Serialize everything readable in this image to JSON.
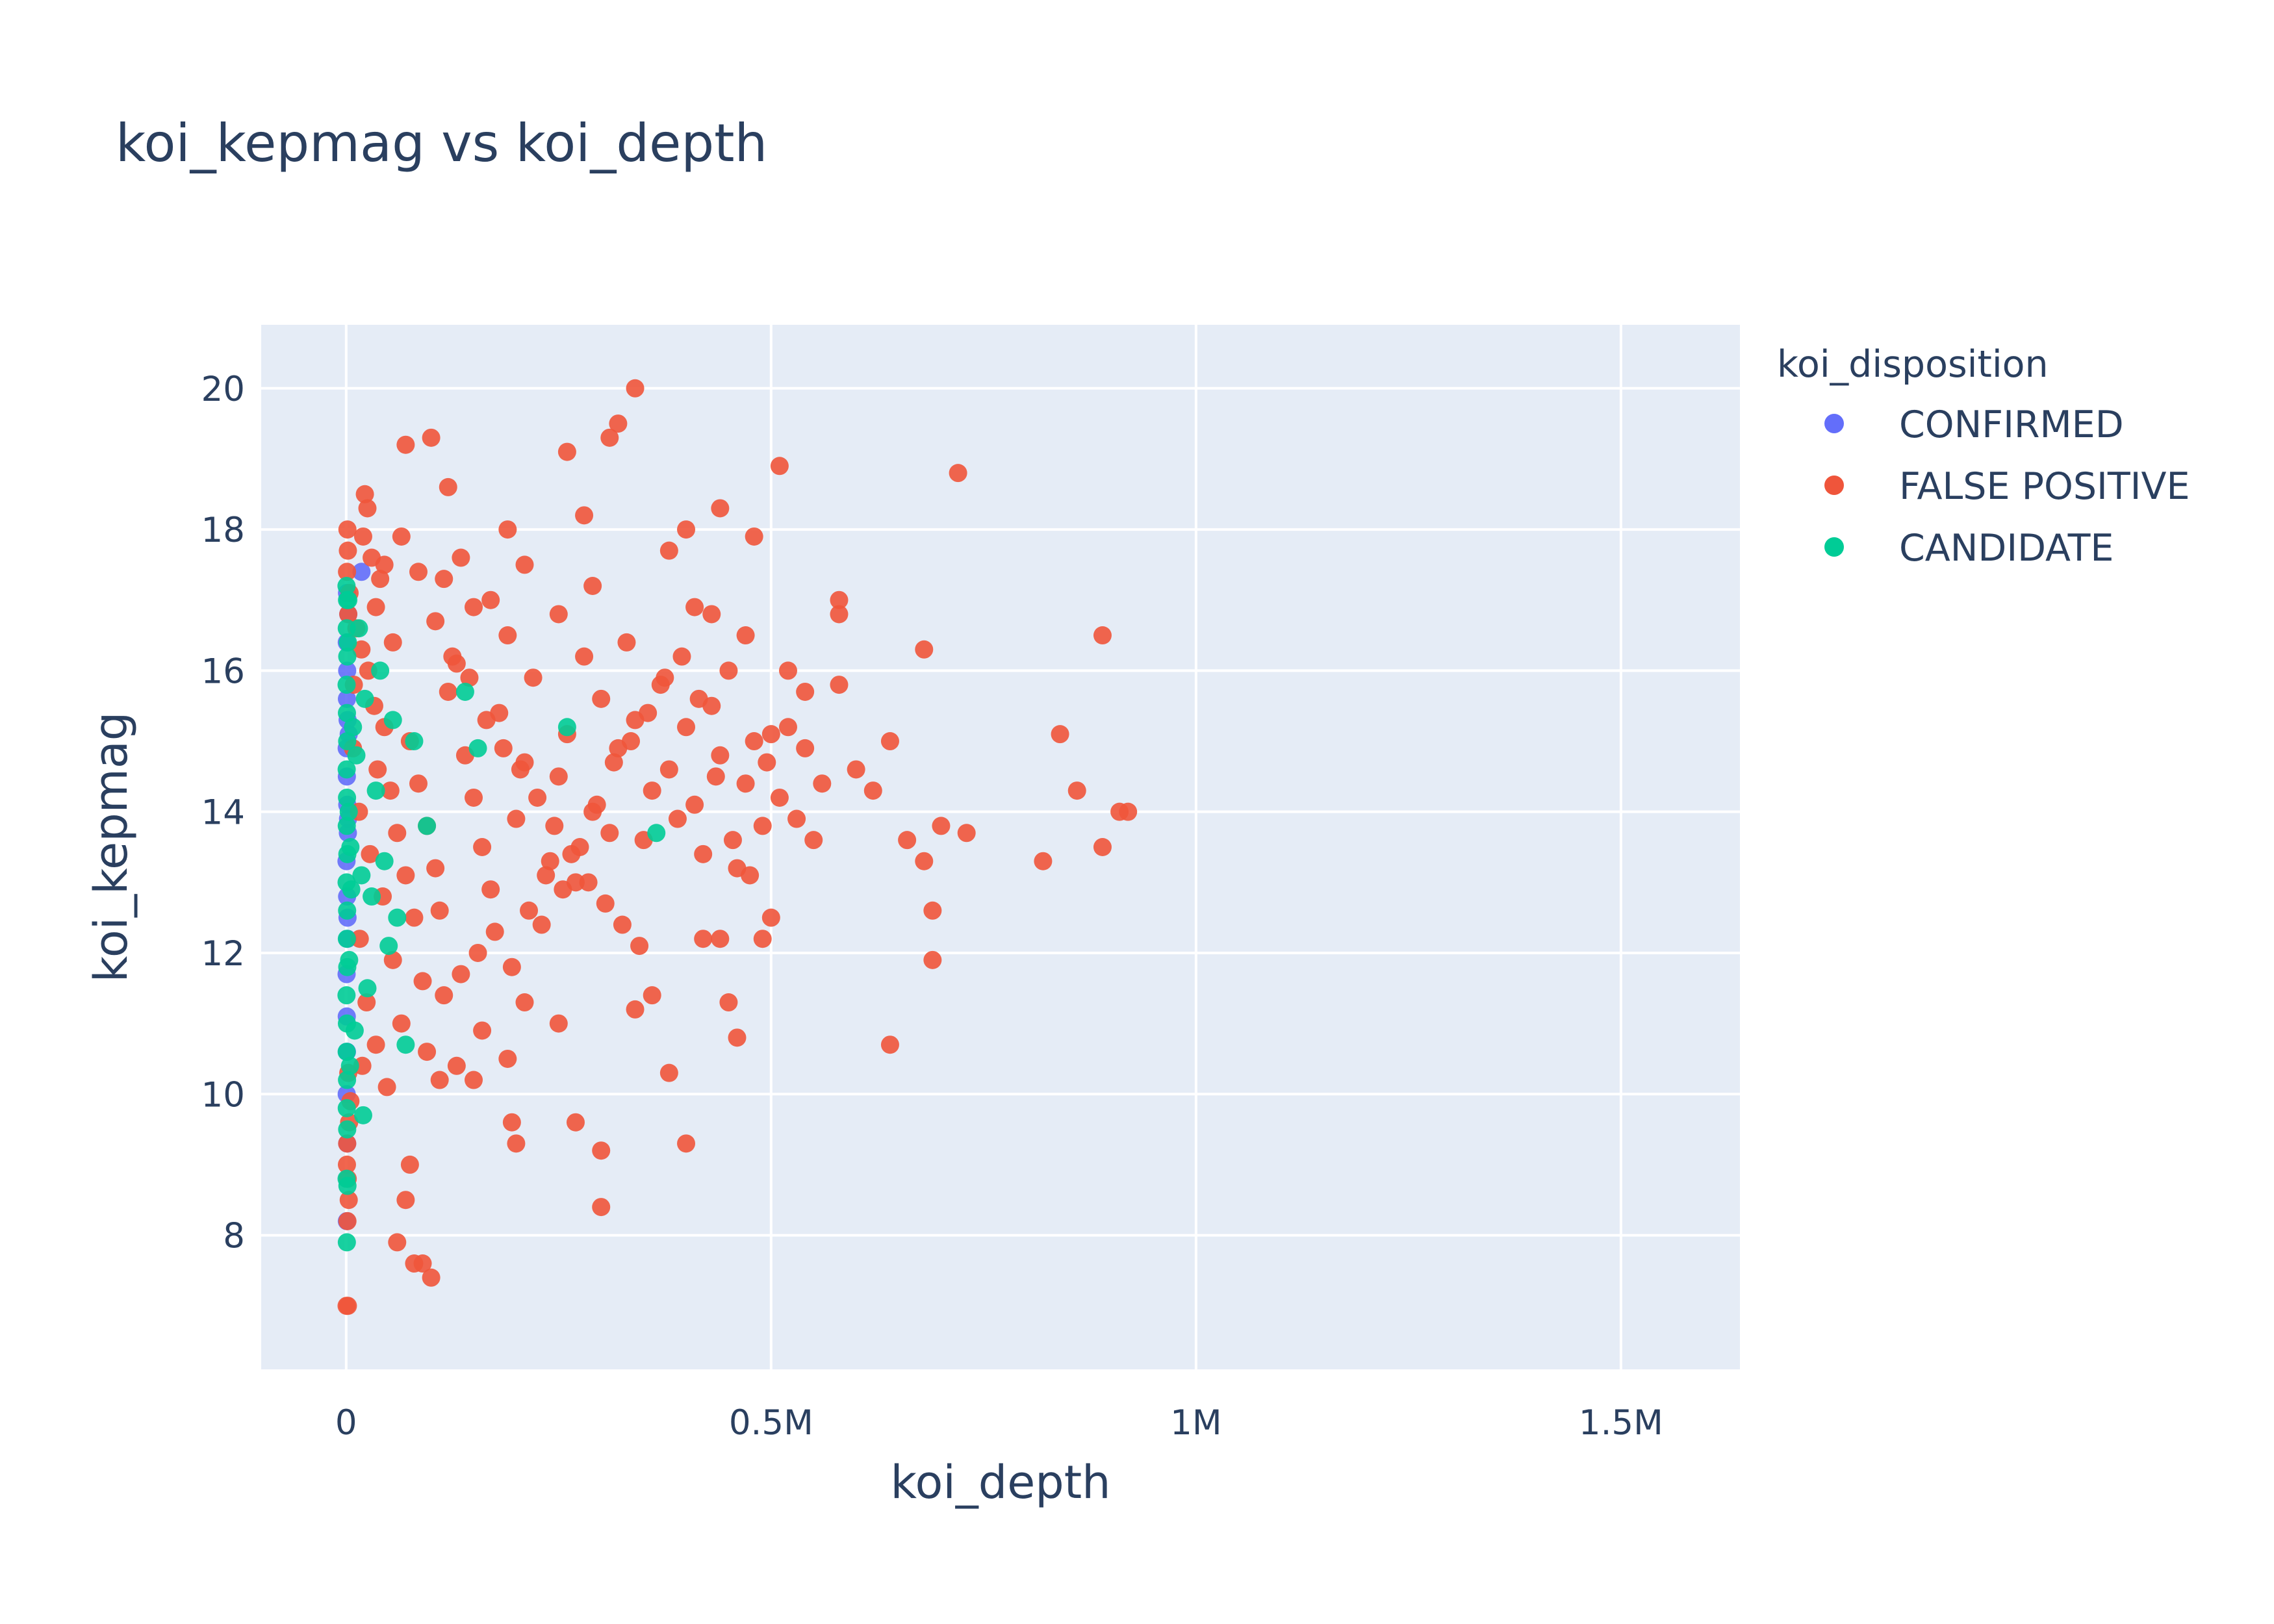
{
  "chart_data": {
    "type": "scatter",
    "title": "koi_kepmag vs koi_depth",
    "xlabel": "koi_depth",
    "ylabel": "koi_kepmag",
    "xlim": [
      -100000,
      1640000
    ],
    "ylim": [
      6.1,
      20.9
    ],
    "xticks": [
      0,
      500000,
      1000000,
      1500000
    ],
    "xtick_labels": [
      "0",
      "0.5M",
      "1M",
      "1.5M"
    ],
    "yticks": [
      8,
      10,
      12,
      14,
      16,
      18,
      20
    ],
    "ytick_labels": [
      "8",
      "10",
      "12",
      "14",
      "16",
      "18",
      "20"
    ],
    "grid": true,
    "legend_title": "koi_disposition",
    "legend_position": "top-right",
    "series": [
      {
        "name": "CONFIRMED",
        "color": "#636efa",
        "points": [
          [
            800,
            8.2
          ],
          [
            1200,
            9.3
          ],
          [
            600,
            10.0
          ],
          [
            900,
            10.6
          ],
          [
            700,
            11.1
          ],
          [
            500,
            11.7
          ],
          [
            1500,
            12.2
          ],
          [
            1100,
            12.8
          ],
          [
            400,
            13.3
          ],
          [
            2000,
            13.7
          ],
          [
            1300,
            14.1
          ],
          [
            800,
            14.5
          ],
          [
            600,
            14.9
          ],
          [
            1700,
            15.3
          ],
          [
            900,
            15.6
          ],
          [
            1200,
            16.0
          ],
          [
            700,
            16.4
          ],
          [
            2500,
            16.8
          ],
          [
            1000,
            17.1
          ],
          [
            18000,
            17.4
          ],
          [
            3000,
            15.1
          ],
          [
            2200,
            13.9
          ],
          [
            1600,
            12.5
          ]
        ]
      },
      {
        "name": "FALSE POSITIVE",
        "color": "#ef553b",
        "points": [
          [
            1500,
            18.0
          ],
          [
            2000,
            17.7
          ],
          [
            1000,
            17.4
          ],
          [
            4000,
            17.1
          ],
          [
            2500,
            16.8
          ],
          [
            1200,
            9.3
          ],
          [
            900,
            9.0
          ],
          [
            1800,
            8.8
          ],
          [
            3000,
            8.5
          ],
          [
            1500,
            8.2
          ],
          [
            2000,
            7.0
          ],
          [
            500,
            7.0
          ],
          [
            3500,
            9.6
          ],
          [
            5000,
            9.9
          ],
          [
            2500,
            10.3
          ],
          [
            22000,
            18.5
          ],
          [
            25000,
            18.3
          ],
          [
            20000,
            17.9
          ],
          [
            30000,
            17.6
          ],
          [
            40000,
            17.3
          ],
          [
            12000,
            16.6
          ],
          [
            18000,
            16.3
          ],
          [
            26000,
            16.0
          ],
          [
            9000,
            15.8
          ],
          [
            33000,
            15.5
          ],
          [
            45000,
            15.2
          ],
          [
            8000,
            14.9
          ],
          [
            37000,
            14.6
          ],
          [
            52000,
            14.3
          ],
          [
            15000,
            14.0
          ],
          [
            60000,
            13.7
          ],
          [
            28000,
            13.4
          ],
          [
            70000,
            13.1
          ],
          [
            43000,
            12.8
          ],
          [
            80000,
            12.5
          ],
          [
            16000,
            12.2
          ],
          [
            55000,
            11.9
          ],
          [
            90000,
            11.6
          ],
          [
            24000,
            11.3
          ],
          [
            65000,
            11.0
          ],
          [
            35000,
            10.7
          ],
          [
            19000,
            10.4
          ],
          [
            48000,
            10.1
          ],
          [
            75000,
            15.0
          ],
          [
            85000,
            14.4
          ],
          [
            95000,
            13.8
          ],
          [
            105000,
            13.2
          ],
          [
            110000,
            12.6
          ],
          [
            120000,
            15.7
          ],
          [
            130000,
            16.1
          ],
          [
            140000,
            14.8
          ],
          [
            150000,
            14.2
          ],
          [
            160000,
            13.5
          ],
          [
            170000,
            12.9
          ],
          [
            180000,
            15.4
          ],
          [
            190000,
            16.5
          ],
          [
            200000,
            13.9
          ],
          [
            210000,
            14.7
          ],
          [
            220000,
            15.9
          ],
          [
            230000,
            12.4
          ],
          [
            240000,
            13.3
          ],
          [
            250000,
            14.5
          ],
          [
            260000,
            15.1
          ],
          [
            270000,
            13.0
          ],
          [
            280000,
            16.2
          ],
          [
            290000,
            14.0
          ],
          [
            300000,
            15.6
          ],
          [
            310000,
            13.7
          ],
          [
            320000,
            14.9
          ],
          [
            330000,
            16.4
          ],
          [
            340000,
            15.3
          ],
          [
            350000,
            13.6
          ],
          [
            360000,
            14.3
          ],
          [
            370000,
            15.8
          ],
          [
            380000,
            14.6
          ],
          [
            390000,
            13.9
          ],
          [
            400000,
            15.2
          ],
          [
            410000,
            14.1
          ],
          [
            420000,
            13.4
          ],
          [
            430000,
            15.5
          ],
          [
            440000,
            14.8
          ],
          [
            450000,
            16.0
          ],
          [
            460000,
            13.2
          ],
          [
            470000,
            14.4
          ],
          [
            480000,
            15.0
          ],
          [
            490000,
            13.8
          ],
          [
            500000,
            15.1
          ],
          [
            510000,
            14.2
          ],
          [
            520000,
            15.2
          ],
          [
            530000,
            13.9
          ],
          [
            540000,
            14.9
          ],
          [
            560000,
            14.4
          ],
          [
            580000,
            15.8
          ],
          [
            600000,
            14.6
          ],
          [
            620000,
            14.3
          ],
          [
            640000,
            15.0
          ],
          [
            660000,
            13.6
          ],
          [
            680000,
            16.3
          ],
          [
            700000,
            13.8
          ],
          [
            730000,
            13.7
          ],
          [
            840000,
            15.1
          ],
          [
            860000,
            14.3
          ],
          [
            890000,
            16.5
          ],
          [
            910000,
            14.0
          ],
          [
            920000,
            14.0
          ],
          [
            890000,
            13.5
          ],
          [
            820000,
            13.3
          ],
          [
            680000,
            13.3
          ],
          [
            690000,
            12.6
          ],
          [
            690000,
            11.9
          ],
          [
            640000,
            10.7
          ],
          [
            580000,
            16.8
          ],
          [
            580000,
            17.0
          ],
          [
            720000,
            18.8
          ],
          [
            510000,
            18.9
          ],
          [
            480000,
            17.9
          ],
          [
            440000,
            18.3
          ],
          [
            400000,
            18.0
          ],
          [
            380000,
            17.7
          ],
          [
            340000,
            20.0
          ],
          [
            320000,
            19.5
          ],
          [
            310000,
            19.3
          ],
          [
            260000,
            19.1
          ],
          [
            100000,
            19.3
          ],
          [
            70000,
            19.2
          ],
          [
            120000,
            18.6
          ],
          [
            280000,
            18.2
          ],
          [
            190000,
            18.0
          ],
          [
            460000,
            10.8
          ],
          [
            450000,
            11.3
          ],
          [
            400000,
            9.3
          ],
          [
            380000,
            10.3
          ],
          [
            360000,
            11.4
          ],
          [
            340000,
            11.2
          ],
          [
            300000,
            8.4
          ],
          [
            300000,
            9.2
          ],
          [
            270000,
            9.6
          ],
          [
            200000,
            9.3
          ],
          [
            195000,
            9.6
          ],
          [
            150000,
            10.2
          ],
          [
            190000,
            10.5
          ],
          [
            100000,
            7.4
          ],
          [
            90000,
            7.6
          ],
          [
            80000,
            7.6
          ],
          [
            60000,
            7.9
          ],
          [
            70000,
            8.5
          ],
          [
            75000,
            9.0
          ],
          [
            95000,
            10.6
          ],
          [
            110000,
            10.2
          ],
          [
            130000,
            10.4
          ],
          [
            160000,
            10.9
          ],
          [
            210000,
            11.3
          ],
          [
            250000,
            11.0
          ],
          [
            420000,
            12.2
          ],
          [
            440000,
            12.2
          ],
          [
            490000,
            12.2
          ],
          [
            500000,
            12.5
          ],
          [
            550000,
            13.6
          ],
          [
            520000,
            16.0
          ],
          [
            540000,
            15.7
          ],
          [
            470000,
            16.5
          ],
          [
            430000,
            16.8
          ],
          [
            410000,
            16.9
          ],
          [
            250000,
            16.8
          ],
          [
            290000,
            17.2
          ],
          [
            210000,
            17.5
          ],
          [
            170000,
            17.0
          ],
          [
            150000,
            16.9
          ],
          [
            135000,
            17.6
          ],
          [
            115000,
            17.3
          ],
          [
            85000,
            17.4
          ],
          [
            65000,
            17.9
          ],
          [
            45000,
            17.5
          ],
          [
            35000,
            16.9
          ],
          [
            55000,
            16.4
          ],
          [
            105000,
            16.7
          ],
          [
            125000,
            16.2
          ],
          [
            145000,
            15.9
          ],
          [
            165000,
            15.3
          ],
          [
            185000,
            14.9
          ],
          [
            205000,
            14.6
          ],
          [
            225000,
            14.2
          ],
          [
            245000,
            13.8
          ],
          [
            265000,
            13.4
          ],
          [
            285000,
            13.0
          ],
          [
            305000,
            12.7
          ],
          [
            325000,
            12.4
          ],
          [
            345000,
            12.1
          ],
          [
            175000,
            12.3
          ],
          [
            155000,
            12.0
          ],
          [
            135000,
            11.7
          ],
          [
            115000,
            11.4
          ],
          [
            195000,
            11.8
          ],
          [
            215000,
            12.6
          ],
          [
            235000,
            13.1
          ],
          [
            255000,
            12.9
          ],
          [
            275000,
            13.5
          ],
          [
            295000,
            14.1
          ],
          [
            315000,
            14.7
          ],
          [
            335000,
            15.0
          ],
          [
            355000,
            15.4
          ],
          [
            375000,
            15.9
          ],
          [
            395000,
            16.2
          ],
          [
            415000,
            15.6
          ],
          [
            435000,
            14.5
          ],
          [
            455000,
            13.6
          ],
          [
            475000,
            13.1
          ],
          [
            495000,
            14.7
          ]
        ]
      },
      {
        "name": "CANDIDATE",
        "color": "#00cc96",
        "points": [
          [
            800,
            7.9
          ],
          [
            1500,
            8.7
          ],
          [
            500,
            8.8
          ],
          [
            1200,
            9.5
          ],
          [
            700,
            9.8
          ],
          [
            1000,
            10.2
          ],
          [
            600,
            10.6
          ],
          [
            900,
            11.0
          ],
          [
            400,
            11.4
          ],
          [
            1300,
            11.8
          ],
          [
            800,
            12.2
          ],
          [
            1100,
            12.6
          ],
          [
            500,
            13.0
          ],
          [
            1400,
            13.4
          ],
          [
            700,
            13.8
          ],
          [
            1000,
            14.2
          ],
          [
            600,
            14.6
          ],
          [
            1200,
            15.0
          ],
          [
            900,
            15.4
          ],
          [
            500,
            15.8
          ],
          [
            1300,
            16.2
          ],
          [
            700,
            16.6
          ],
          [
            1000,
            17.0
          ],
          [
            400,
            17.2
          ],
          [
            3000,
            14.0
          ],
          [
            5000,
            13.5
          ],
          [
            8000,
            15.2
          ],
          [
            12000,
            14.8
          ],
          [
            15000,
            16.6
          ],
          [
            18000,
            13.1
          ],
          [
            22000,
            15.6
          ],
          [
            25000,
            11.5
          ],
          [
            30000,
            12.8
          ],
          [
            35000,
            14.3
          ],
          [
            40000,
            16.0
          ],
          [
            45000,
            13.3
          ],
          [
            50000,
            12.1
          ],
          [
            55000,
            15.3
          ],
          [
            60000,
            12.5
          ],
          [
            70000,
            10.7
          ],
          [
            80000,
            15.0
          ],
          [
            95000,
            13.8
          ],
          [
            140000,
            15.7
          ],
          [
            155000,
            14.9
          ],
          [
            260000,
            15.2
          ],
          [
            365000,
            13.7
          ],
          [
            20000,
            9.7
          ],
          [
            10000,
            10.9
          ],
          [
            6000,
            12.9
          ],
          [
            2500,
            17.0
          ],
          [
            2000,
            16.4
          ],
          [
            3500,
            11.9
          ],
          [
            4500,
            10.4
          ]
        ]
      }
    ]
  }
}
